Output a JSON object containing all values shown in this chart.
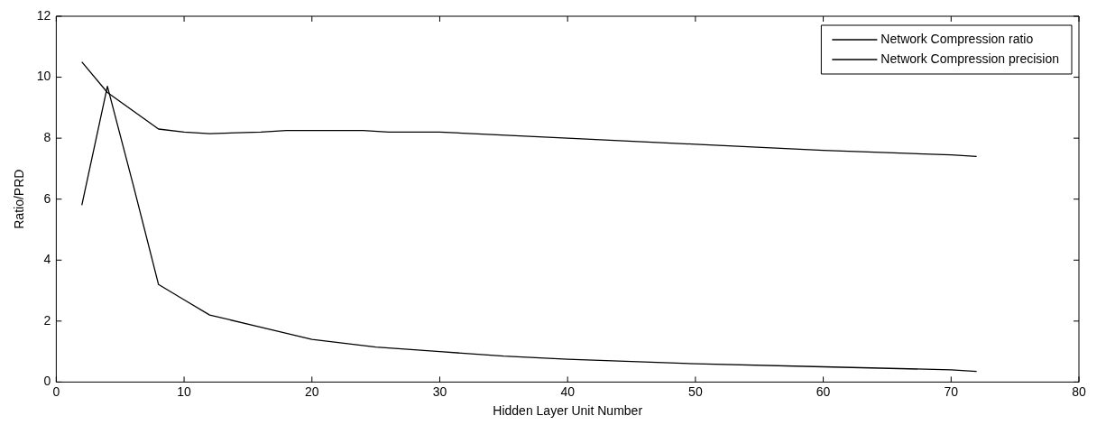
{
  "chart_data": {
    "type": "line",
    "xlabel": "Hidden Layer Unit Number",
    "ylabel": "Ratio/PRD",
    "xlim": [
      0,
      80
    ],
    "xticks": [
      0,
      10,
      20,
      30,
      40,
      50,
      60,
      70,
      80
    ],
    "ylim": [
      0,
      12
    ],
    "yticks": [
      0,
      2,
      4,
      6,
      8,
      10,
      12
    ],
    "legend": "top right",
    "marker": "none",
    "line_style": "solid",
    "series": [
      {
        "name": "Network Compression ratio",
        "color": "#000000",
        "x": [
          2,
          4,
          6,
          8,
          10,
          12,
          16,
          18,
          24,
          26,
          30,
          40,
          50,
          60,
          70,
          72
        ],
        "values": [
          10.5,
          9.5,
          8.9,
          8.3,
          8.2,
          8.15,
          8.2,
          8.25,
          8.25,
          8.2,
          8.2,
          8.0,
          7.8,
          7.6,
          7.45,
          7.4
        ]
      },
      {
        "name": "Network Compression precision",
        "color": "#000000",
        "x": [
          2,
          4,
          6,
          8,
          10,
          12,
          16,
          20,
          25,
          30,
          35,
          40,
          50,
          60,
          70,
          72
        ],
        "values": [
          5.8,
          9.7,
          6.5,
          3.2,
          2.7,
          2.2,
          1.8,
          1.4,
          1.15,
          1.0,
          0.85,
          0.75,
          0.6,
          0.5,
          0.4,
          0.35
        ]
      }
    ]
  }
}
